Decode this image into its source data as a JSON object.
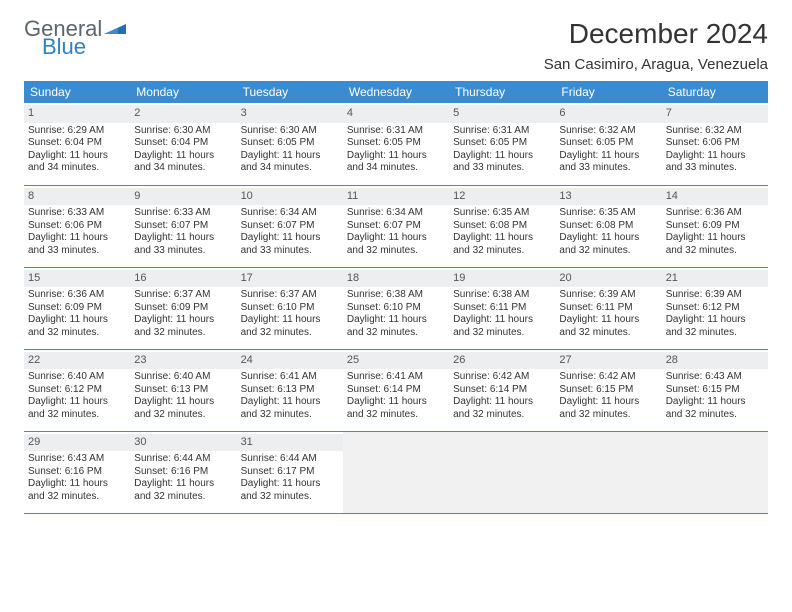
{
  "brand": {
    "part1": "General",
    "part2": "Blue",
    "color1": "#5c6670",
    "color2": "#2f81c4"
  },
  "title": "December 2024",
  "location": "San Casimiro, Aragua, Venezuela",
  "header_bg": "#3a8bd0",
  "weekdays": [
    "Sunday",
    "Monday",
    "Tuesday",
    "Wednesday",
    "Thursday",
    "Friday",
    "Saturday"
  ],
  "weeks": [
    [
      {
        "n": "1",
        "sr": "Sunrise: 6:29 AM",
        "ss": "Sunset: 6:04 PM",
        "d1": "Daylight: 11 hours",
        "d2": "and 34 minutes."
      },
      {
        "n": "2",
        "sr": "Sunrise: 6:30 AM",
        "ss": "Sunset: 6:04 PM",
        "d1": "Daylight: 11 hours",
        "d2": "and 34 minutes."
      },
      {
        "n": "3",
        "sr": "Sunrise: 6:30 AM",
        "ss": "Sunset: 6:05 PM",
        "d1": "Daylight: 11 hours",
        "d2": "and 34 minutes."
      },
      {
        "n": "4",
        "sr": "Sunrise: 6:31 AM",
        "ss": "Sunset: 6:05 PM",
        "d1": "Daylight: 11 hours",
        "d2": "and 34 minutes."
      },
      {
        "n": "5",
        "sr": "Sunrise: 6:31 AM",
        "ss": "Sunset: 6:05 PM",
        "d1": "Daylight: 11 hours",
        "d2": "and 33 minutes."
      },
      {
        "n": "6",
        "sr": "Sunrise: 6:32 AM",
        "ss": "Sunset: 6:05 PM",
        "d1": "Daylight: 11 hours",
        "d2": "and 33 minutes."
      },
      {
        "n": "7",
        "sr": "Sunrise: 6:32 AM",
        "ss": "Sunset: 6:06 PM",
        "d1": "Daylight: 11 hours",
        "d2": "and 33 minutes."
      }
    ],
    [
      {
        "n": "8",
        "sr": "Sunrise: 6:33 AM",
        "ss": "Sunset: 6:06 PM",
        "d1": "Daylight: 11 hours",
        "d2": "and 33 minutes."
      },
      {
        "n": "9",
        "sr": "Sunrise: 6:33 AM",
        "ss": "Sunset: 6:07 PM",
        "d1": "Daylight: 11 hours",
        "d2": "and 33 minutes."
      },
      {
        "n": "10",
        "sr": "Sunrise: 6:34 AM",
        "ss": "Sunset: 6:07 PM",
        "d1": "Daylight: 11 hours",
        "d2": "and 33 minutes."
      },
      {
        "n": "11",
        "sr": "Sunrise: 6:34 AM",
        "ss": "Sunset: 6:07 PM",
        "d1": "Daylight: 11 hours",
        "d2": "and 32 minutes."
      },
      {
        "n": "12",
        "sr": "Sunrise: 6:35 AM",
        "ss": "Sunset: 6:08 PM",
        "d1": "Daylight: 11 hours",
        "d2": "and 32 minutes."
      },
      {
        "n": "13",
        "sr": "Sunrise: 6:35 AM",
        "ss": "Sunset: 6:08 PM",
        "d1": "Daylight: 11 hours",
        "d2": "and 32 minutes."
      },
      {
        "n": "14",
        "sr": "Sunrise: 6:36 AM",
        "ss": "Sunset: 6:09 PM",
        "d1": "Daylight: 11 hours",
        "d2": "and 32 minutes."
      }
    ],
    [
      {
        "n": "15",
        "sr": "Sunrise: 6:36 AM",
        "ss": "Sunset: 6:09 PM",
        "d1": "Daylight: 11 hours",
        "d2": "and 32 minutes."
      },
      {
        "n": "16",
        "sr": "Sunrise: 6:37 AM",
        "ss": "Sunset: 6:09 PM",
        "d1": "Daylight: 11 hours",
        "d2": "and 32 minutes."
      },
      {
        "n": "17",
        "sr": "Sunrise: 6:37 AM",
        "ss": "Sunset: 6:10 PM",
        "d1": "Daylight: 11 hours",
        "d2": "and 32 minutes."
      },
      {
        "n": "18",
        "sr": "Sunrise: 6:38 AM",
        "ss": "Sunset: 6:10 PM",
        "d1": "Daylight: 11 hours",
        "d2": "and 32 minutes."
      },
      {
        "n": "19",
        "sr": "Sunrise: 6:38 AM",
        "ss": "Sunset: 6:11 PM",
        "d1": "Daylight: 11 hours",
        "d2": "and 32 minutes."
      },
      {
        "n": "20",
        "sr": "Sunrise: 6:39 AM",
        "ss": "Sunset: 6:11 PM",
        "d1": "Daylight: 11 hours",
        "d2": "and 32 minutes."
      },
      {
        "n": "21",
        "sr": "Sunrise: 6:39 AM",
        "ss": "Sunset: 6:12 PM",
        "d1": "Daylight: 11 hours",
        "d2": "and 32 minutes."
      }
    ],
    [
      {
        "n": "22",
        "sr": "Sunrise: 6:40 AM",
        "ss": "Sunset: 6:12 PM",
        "d1": "Daylight: 11 hours",
        "d2": "and 32 minutes."
      },
      {
        "n": "23",
        "sr": "Sunrise: 6:40 AM",
        "ss": "Sunset: 6:13 PM",
        "d1": "Daylight: 11 hours",
        "d2": "and 32 minutes."
      },
      {
        "n": "24",
        "sr": "Sunrise: 6:41 AM",
        "ss": "Sunset: 6:13 PM",
        "d1": "Daylight: 11 hours",
        "d2": "and 32 minutes."
      },
      {
        "n": "25",
        "sr": "Sunrise: 6:41 AM",
        "ss": "Sunset: 6:14 PM",
        "d1": "Daylight: 11 hours",
        "d2": "and 32 minutes."
      },
      {
        "n": "26",
        "sr": "Sunrise: 6:42 AM",
        "ss": "Sunset: 6:14 PM",
        "d1": "Daylight: 11 hours",
        "d2": "and 32 minutes."
      },
      {
        "n": "27",
        "sr": "Sunrise: 6:42 AM",
        "ss": "Sunset: 6:15 PM",
        "d1": "Daylight: 11 hours",
        "d2": "and 32 minutes."
      },
      {
        "n": "28",
        "sr": "Sunrise: 6:43 AM",
        "ss": "Sunset: 6:15 PM",
        "d1": "Daylight: 11 hours",
        "d2": "and 32 minutes."
      }
    ],
    [
      {
        "n": "29",
        "sr": "Sunrise: 6:43 AM",
        "ss": "Sunset: 6:16 PM",
        "d1": "Daylight: 11 hours",
        "d2": "and 32 minutes."
      },
      {
        "n": "30",
        "sr": "Sunrise: 6:44 AM",
        "ss": "Sunset: 6:16 PM",
        "d1": "Daylight: 11 hours",
        "d2": "and 32 minutes."
      },
      {
        "n": "31",
        "sr": "Sunrise: 6:44 AM",
        "ss": "Sunset: 6:17 PM",
        "d1": "Daylight: 11 hours",
        "d2": "and 32 minutes."
      },
      null,
      null,
      null,
      null
    ]
  ]
}
